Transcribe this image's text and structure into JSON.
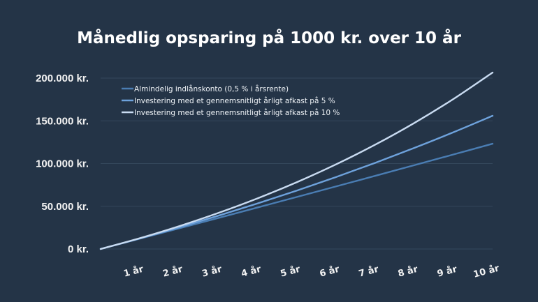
{
  "chart_data": {
    "type": "line",
    "title": "Månedlig opsparing på 1000 kr. over 10 år",
    "x": [
      0,
      1,
      2,
      3,
      4,
      5,
      6,
      7,
      8,
      9,
      10
    ],
    "x_tick_labels": [
      "1 år",
      "2 år",
      "3 år",
      "4 år",
      "5 år",
      "6 år",
      "7 år",
      "8 år",
      "9 år",
      "10 år"
    ],
    "y_tick_labels": [
      "0 kr.",
      "50.000 kr.",
      "100.000 kr.",
      "150.000 kr.",
      "200.000 kr."
    ],
    "y_ticks": [
      0,
      50000,
      100000,
      150000,
      200000
    ],
    "ylim": [
      0,
      200000
    ],
    "grid": true,
    "legend_placement": "top-left",
    "series": [
      {
        "name": "Almindelig indlånskonto (0,5 % i årsrente)",
        "color": "#4a7db3",
        "values": [
          0,
          12033,
          24130,
          36290,
          48510,
          60800,
          73150,
          85570,
          98050,
          110600,
          123210
        ]
      },
      {
        "name": "Investering med et gennemsnitligt årligt afkast på 5 %",
        "color": "#6ea2dc",
        "values": [
          0,
          12329,
          25290,
          38911,
          53238,
          68296,
          84112,
          100743,
          118230,
          136605,
          155925
        ]
      },
      {
        "name": "Investering med et gennemsnitligt årligt afkast på 10 %",
        "color": "#c9dbf1",
        "values": [
          0,
          12670,
          26668,
          42132,
          59214,
          78087,
          98934,
          121964,
          147407,
          175512,
          206557
        ]
      }
    ],
    "background": "#243447"
  }
}
